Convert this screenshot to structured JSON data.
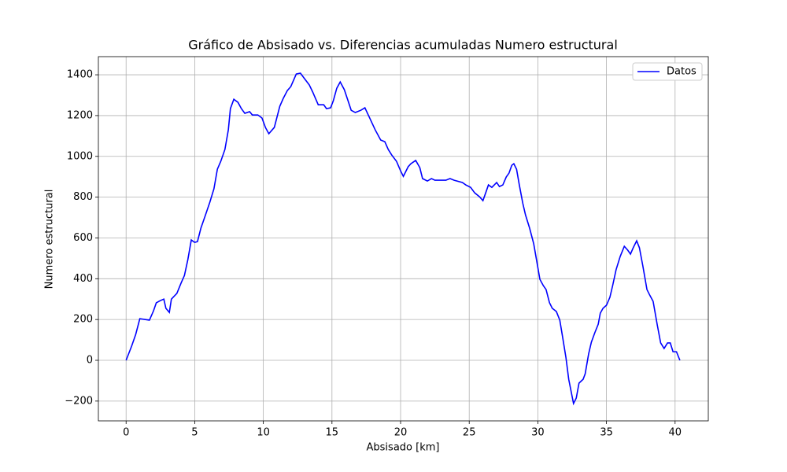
{
  "chart_data": {
    "type": "line",
    "title": "Gráfico de Absisado vs. Diferencias acumuladas Numero estructural",
    "x_label": "Absisado [km]",
    "y_label": "Numero estructural",
    "x": [
      0,
      0.4,
      0.7,
      1.0,
      1.4,
      1.7,
      2.0,
      2.2,
      2.5,
      2.75,
      2.9,
      3.15,
      3.3,
      3.7,
      4.0,
      4.25,
      4.5,
      4.75,
      5.0,
      5.2,
      5.45,
      5.75,
      6.1,
      6.4,
      6.65,
      6.9,
      7.2,
      7.45,
      7.6,
      7.85,
      8.15,
      8.4,
      8.65,
      9.0,
      9.2,
      9.6,
      9.9,
      10.15,
      10.4,
      10.8,
      11.2,
      11.45,
      11.75,
      12.0,
      12.4,
      12.7,
      13.0,
      13.35,
      13.6,
      13.8,
      14.0,
      14.4,
      14.6,
      14.9,
      15.1,
      15.35,
      15.6,
      15.9,
      16.15,
      16.4,
      16.7,
      17.1,
      17.4,
      17.75,
      18.15,
      18.55,
      18.85,
      19.1,
      19.35,
      19.7,
      20.0,
      20.2,
      20.55,
      20.75,
      21.1,
      21.4,
      21.6,
      21.95,
      22.25,
      22.5,
      23.3,
      23.6,
      23.9,
      24.5,
      24.75,
      25.1,
      25.4,
      25.75,
      26.0,
      26.2,
      26.4,
      26.65,
      27.0,
      27.2,
      27.45,
      27.7,
      27.9,
      28.1,
      28.25,
      28.45,
      28.65,
      28.9,
      29.1,
      29.4,
      29.7,
      29.9,
      30.15,
      30.4,
      30.6,
      30.85,
      31.05,
      31.35,
      31.6,
      31.8,
      32.05,
      32.25,
      32.6,
      32.8,
      33.0,
      33.3,
      33.45,
      33.7,
      33.9,
      34.15,
      34.4,
      34.55,
      34.75,
      35.0,
      35.25,
      35.45,
      35.7,
      36.0,
      36.3,
      36.55,
      36.75,
      36.95,
      37.2,
      37.4,
      37.65,
      37.95,
      38.15,
      38.4,
      38.7,
      38.95,
      39.2,
      39.45,
      39.65,
      39.85,
      40.1,
      40.35
    ],
    "series": [
      {
        "name": "Datos",
        "color": "#0000ff",
        "values": [
          0,
          69,
          127,
          204,
          200,
          197,
          243,
          282,
          293,
          300,
          255,
          235,
          300,
          328,
          378,
          416,
          494,
          590,
          578,
          582,
          648,
          706,
          775,
          841,
          937,
          976,
          1034,
          1130,
          1234,
          1280,
          1265,
          1234,
          1211,
          1219,
          1203,
          1203,
          1188,
          1142,
          1111,
          1142,
          1246,
          1284,
          1323,
          1342,
          1404,
          1408,
          1381,
          1350,
          1315,
          1284,
          1253,
          1253,
          1234,
          1238,
          1273,
          1334,
          1365,
          1327,
          1277,
          1226,
          1215,
          1226,
          1238,
          1188,
          1130,
          1080,
          1072,
          1034,
          1007,
          976,
          929,
          902,
          949,
          964,
          980,
          945,
          891,
          879,
          891,
          883,
          883,
          891,
          883,
          872,
          860,
          848,
          821,
          802,
          783,
          821,
          860,
          848,
          872,
          852,
          860,
          899,
          918,
          956,
          964,
          937,
          860,
          771,
          713,
          648,
          571,
          494,
          397,
          366,
          347,
          282,
          255,
          239,
          197,
          116,
          12,
          -93,
          -212,
          -185,
          -112,
          -93,
          -66,
          31,
          89,
          135,
          177,
          231,
          255,
          270,
          309,
          366,
          444,
          509,
          559,
          540,
          521,
          552,
          586,
          552,
          463,
          347,
          320,
          289,
          174,
          85,
          58,
          85,
          85,
          42,
          42,
          0
        ]
      }
    ],
    "xlim": [
      -2.02,
      42.42
    ],
    "ylim": [
      -297,
      1489
    ],
    "xticks": [
      0,
      5,
      10,
      15,
      20,
      25,
      30,
      35,
      40
    ],
    "yticks": [
      {
        "value": -200,
        "label": "−200"
      },
      0,
      200,
      400,
      600,
      800,
      1000,
      1200,
      1400
    ],
    "grid": true,
    "legend": "upper right"
  }
}
